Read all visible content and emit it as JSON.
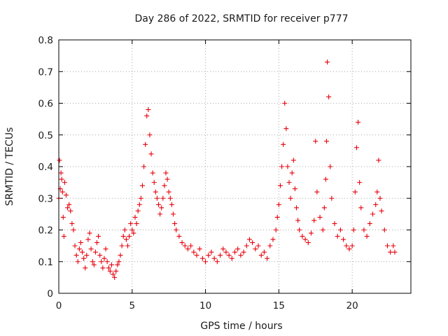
{
  "chart_data": {
    "type": "scatter",
    "title": "Day 286 of 2022, SRMTID for receiver p777",
    "xlabel": "GPS time / hours",
    "ylabel": "SRMTID / TECUs",
    "xlim": [
      0,
      24
    ],
    "ylim": [
      0,
      0.8
    ],
    "x_ticks": [
      0,
      5,
      10,
      15,
      20
    ],
    "x_tick_labels": [
      "0",
      "5",
      "10",
      "15",
      "20"
    ],
    "y_ticks": [
      0,
      0.1,
      0.2,
      0.3,
      0.4,
      0.5,
      0.6,
      0.7,
      0.8
    ],
    "y_tick_labels": [
      "0",
      "0.1",
      "0.2",
      "0.3",
      "0.4",
      "0.5",
      "0.6",
      "0.7",
      "0.8"
    ],
    "grid": true,
    "marker": "plus",
    "series": [
      {
        "name": "SRMTID",
        "color": "#e8000b",
        "x": [
          0.0,
          0.05,
          0.1,
          0.15,
          0.2,
          0.25,
          0.3,
          0.35,
          0.4,
          0.5,
          0.6,
          0.7,
          0.8,
          0.9,
          1.0,
          1.1,
          1.2,
          1.3,
          1.4,
          1.5,
          1.6,
          1.7,
          1.8,
          1.9,
          2.0,
          2.1,
          2.2,
          2.3,
          2.4,
          2.5,
          2.6,
          2.7,
          2.8,
          2.9,
          3.0,
          3.1,
          3.2,
          3.3,
          3.4,
          3.5,
          3.6,
          3.7,
          3.8,
          3.9,
          4.0,
          4.1,
          4.2,
          4.3,
          4.4,
          4.5,
          4.6,
          4.7,
          4.8,
          4.9,
          5.0,
          5.1,
          5.2,
          5.3,
          5.4,
          5.5,
          5.6,
          5.7,
          5.8,
          5.9,
          6.0,
          6.1,
          6.2,
          6.3,
          6.4,
          6.5,
          6.6,
          6.7,
          6.8,
          6.9,
          7.0,
          7.1,
          7.2,
          7.3,
          7.4,
          7.5,
          7.6,
          7.7,
          7.8,
          7.9,
          8.0,
          8.2,
          8.4,
          8.6,
          8.8,
          9.0,
          9.2,
          9.4,
          9.6,
          9.8,
          10.0,
          10.2,
          10.4,
          10.6,
          10.8,
          11.0,
          11.2,
          11.4,
          11.6,
          11.8,
          12.0,
          12.2,
          12.4,
          12.6,
          12.8,
          13.0,
          13.2,
          13.4,
          13.6,
          13.8,
          14.0,
          14.2,
          14.4,
          14.6,
          14.8,
          14.9,
          15.0,
          15.1,
          15.2,
          15.3,
          15.4,
          15.5,
          15.6,
          15.7,
          15.8,
          15.9,
          16.0,
          16.1,
          16.2,
          16.3,
          16.4,
          16.6,
          16.8,
          17.0,
          17.2,
          17.4,
          17.5,
          17.6,
          17.8,
          18.0,
          18.1,
          18.2,
          18.25,
          18.3,
          18.4,
          18.5,
          18.6,
          18.8,
          19.0,
          19.2,
          19.4,
          19.6,
          19.8,
          20.0,
          20.1,
          20.2,
          20.3,
          20.4,
          20.5,
          20.6,
          20.8,
          21.0,
          21.2,
          21.4,
          21.6,
          21.7,
          21.8,
          21.9,
          22.0,
          22.2,
          22.4,
          22.6,
          22.8,
          22.9
        ],
        "values": [
          0.3,
          0.42,
          0.33,
          0.38,
          0.36,
          0.32,
          0.24,
          0.18,
          0.35,
          0.31,
          0.27,
          0.28,
          0.26,
          0.22,
          0.2,
          0.15,
          0.12,
          0.1,
          0.14,
          0.16,
          0.13,
          0.11,
          0.08,
          0.12,
          0.17,
          0.19,
          0.14,
          0.1,
          0.09,
          0.13,
          0.16,
          0.18,
          0.12,
          0.1,
          0.08,
          0.11,
          0.14,
          0.1,
          0.08,
          0.07,
          0.09,
          0.06,
          0.05,
          0.07,
          0.09,
          0.1,
          0.12,
          0.15,
          0.18,
          0.2,
          0.17,
          0.15,
          0.18,
          0.22,
          0.2,
          0.19,
          0.24,
          0.22,
          0.26,
          0.28,
          0.3,
          0.34,
          0.4,
          0.47,
          0.56,
          0.58,
          0.5,
          0.44,
          0.38,
          0.35,
          0.32,
          0.3,
          0.28,
          0.25,
          0.27,
          0.3,
          0.34,
          0.38,
          0.36,
          0.32,
          0.3,
          0.28,
          0.25,
          0.22,
          0.2,
          0.18,
          0.16,
          0.15,
          0.14,
          0.15,
          0.13,
          0.12,
          0.14,
          0.11,
          0.1,
          0.12,
          0.13,
          0.11,
          0.1,
          0.12,
          0.14,
          0.13,
          0.12,
          0.11,
          0.13,
          0.14,
          0.12,
          0.13,
          0.15,
          0.17,
          0.16,
          0.14,
          0.15,
          0.12,
          0.13,
          0.11,
          0.15,
          0.17,
          0.2,
          0.24,
          0.28,
          0.34,
          0.4,
          0.47,
          0.6,
          0.52,
          0.4,
          0.35,
          0.3,
          0.38,
          0.42,
          0.33,
          0.27,
          0.23,
          0.2,
          0.18,
          0.17,
          0.16,
          0.19,
          0.23,
          0.48,
          0.32,
          0.24,
          0.2,
          0.27,
          0.36,
          0.48,
          0.73,
          0.62,
          0.4,
          0.3,
          0.22,
          0.18,
          0.2,
          0.17,
          0.15,
          0.14,
          0.15,
          0.2,
          0.32,
          0.46,
          0.54,
          0.35,
          0.27,
          0.2,
          0.18,
          0.22,
          0.25,
          0.28,
          0.32,
          0.42,
          0.3,
          0.26,
          0.2,
          0.15,
          0.13,
          0.15,
          0.13
        ]
      }
    ]
  }
}
